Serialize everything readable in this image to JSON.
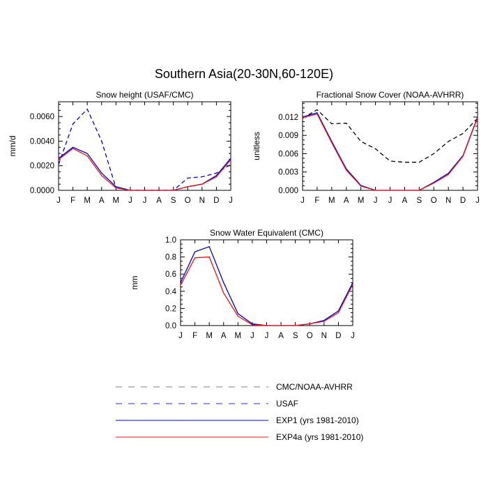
{
  "main_title": "Southern Asia(20-30N,60-120E)",
  "legend": [
    {
      "label": "CMC/NOAA-AVHRR",
      "color": "#7f7f7f",
      "dash": true
    },
    {
      "label": "USAF",
      "color": "#2a2ad4",
      "dash": true
    },
    {
      "label": "EXP1 (yrs 1981-2010)",
      "color": "#0000cc",
      "dash": false
    },
    {
      "label": "EXP4a (yrs 1981-2010)",
      "color": "#ee1111",
      "dash": false
    }
  ],
  "chart_data": [
    {
      "type": "line",
      "title": "Snow height (USAF/CMC)",
      "xlabel": "",
      "ylabel": "mm/d",
      "categories": [
        "J",
        "F",
        "M",
        "A",
        "M",
        "J",
        "J",
        "A",
        "S",
        "O",
        "N",
        "D",
        "J"
      ],
      "ylim": [
        0,
        0.0072
      ],
      "yticks": [
        0.0,
        0.002,
        0.004,
        0.006
      ],
      "ytick_labels": [
        "0.0000",
        "0.0020",
        "0.0040",
        "0.0060"
      ],
      "series": [
        {
          "name": "USAF",
          "color": "#0000cc",
          "dash": true,
          "values": [
            0.0021,
            0.0054,
            0.0066,
            0.004,
            0.0002,
            0.0,
            0.0,
            0.0,
            0.0,
            0.001,
            0.0011,
            0.0014,
            0.0021
          ]
        },
        {
          "name": "EXP1 (yrs 1981-2010)",
          "color": "#0000cc",
          "dash": false,
          "values": [
            0.0026,
            0.0035,
            0.003,
            0.0014,
            0.0003,
            0.0,
            0.0,
            0.0,
            0.0,
            0.0003,
            0.0005,
            0.0012,
            0.0026
          ]
        },
        {
          "name": "EXP4a (yrs 1981-2010)",
          "color": "#ee1111",
          "dash": false,
          "values": [
            0.0025,
            0.0034,
            0.0028,
            0.0012,
            0.0002,
            0.0,
            0.0,
            0.0,
            0.0,
            0.0003,
            0.0005,
            0.0011,
            0.0025
          ]
        }
      ]
    },
    {
      "type": "line",
      "title": "Fractional Snow Cover (NOAA-AVHRR)",
      "xlabel": "",
      "ylabel": "unitless",
      "categories": [
        "J",
        "F",
        "M",
        "A",
        "M",
        "J",
        "J",
        "A",
        "S",
        "O",
        "N",
        "D",
        "J"
      ],
      "ylim": [
        0,
        0.0145
      ],
      "yticks": [
        0.0,
        0.003,
        0.006,
        0.009,
        0.012
      ],
      "ytick_labels": [
        "0.000",
        "0.003",
        "0.006",
        "0.009",
        "0.012"
      ],
      "series": [
        {
          "name": "CMC/NOAA-AVHRR",
          "color": "#000000",
          "dash": true,
          "values": [
            0.0118,
            0.0132,
            0.0109,
            0.011,
            0.008,
            0.0068,
            0.0048,
            0.0046,
            0.0046,
            0.006,
            0.008,
            0.0093,
            0.0118
          ]
        },
        {
          "name": "EXP1 (yrs 1981-2010)",
          "color": "#0000cc",
          "dash": false,
          "values": [
            0.012,
            0.0127,
            0.008,
            0.0035,
            0.0008,
            0.0,
            0.0,
            0.0,
            0.0,
            0.0013,
            0.0028,
            0.0057,
            0.012
          ]
        },
        {
          "name": "EXP4a (yrs 1981-2010)",
          "color": "#ee1111",
          "dash": false,
          "values": [
            0.0119,
            0.0125,
            0.0078,
            0.0033,
            0.0007,
            0.0,
            0.0,
            0.0,
            0.0,
            0.0012,
            0.0026,
            0.0056,
            0.0119
          ]
        }
      ]
    },
    {
      "type": "line",
      "title": "Snow Water Equivalent (CMC)",
      "xlabel": "",
      "ylabel": "mm",
      "categories": [
        "J",
        "F",
        "M",
        "A",
        "M",
        "J",
        "J",
        "A",
        "S",
        "O",
        "N",
        "D",
        "J"
      ],
      "ylim": [
        0,
        1.0
      ],
      "yticks": [
        0.0,
        0.2,
        0.4,
        0.6,
        0.8,
        1.0
      ],
      "ytick_labels": [
        "0.0",
        "0.2",
        "0.4",
        "0.6",
        "0.8",
        "1.0"
      ],
      "series": [
        {
          "name": "EXP1 (yrs 1981-2010)",
          "color": "#0000cc",
          "dash": false,
          "values": [
            0.5,
            0.86,
            0.92,
            0.5,
            0.14,
            0.02,
            0.0,
            0.0,
            0.0,
            0.02,
            0.06,
            0.17,
            0.5
          ]
        },
        {
          "name": "EXP4a (yrs 1981-2010)",
          "color": "#ee1111",
          "dash": false,
          "values": [
            0.47,
            0.79,
            0.8,
            0.38,
            0.11,
            0.01,
            0.0,
            0.0,
            0.0,
            0.02,
            0.05,
            0.15,
            0.48
          ]
        }
      ]
    }
  ]
}
